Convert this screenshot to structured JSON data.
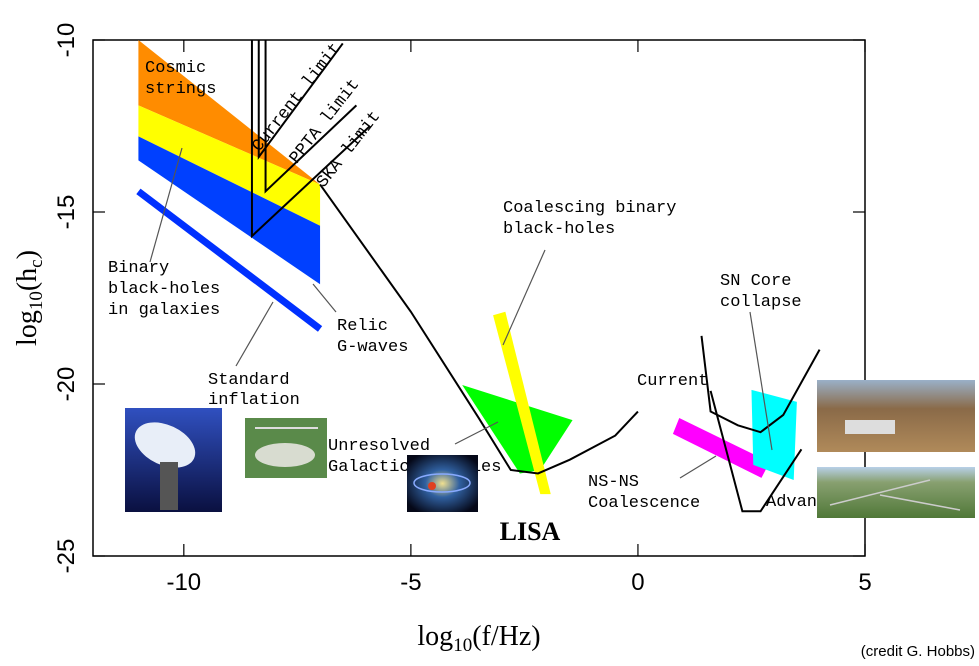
{
  "chart_data": {
    "type": "line",
    "xlabel": [
      "log",
      "10",
      "(f/Hz)"
    ],
    "ylabel": [
      "log",
      "10",
      "(h",
      "c",
      ")"
    ],
    "xlim": [
      -12,
      5
    ],
    "ylim": [
      -25,
      -10
    ],
    "xticks": [
      -10,
      -5,
      0,
      5
    ],
    "yticks": [
      -25,
      -20,
      -15,
      -10
    ],
    "regions": [
      {
        "color": "#ff8c00",
        "x": [
          -11,
          -7,
          -11
        ],
        "y": [
          -10,
          -14.2,
          -11.9
        ]
      },
      {
        "color": "#ffff00",
        "x": [
          -11,
          -7,
          -7,
          -11
        ],
        "y": [
          -11.9,
          -14.2,
          -15.4,
          -12.8
        ]
      },
      {
        "color": "#0040ff",
        "x": [
          -11,
          -7,
          -7,
          -11
        ],
        "y": [
          -12.8,
          -15.4,
          -17.1,
          -13.5
        ]
      },
      {
        "color": "#00ff00",
        "x": [
          -3.87,
          -1.44,
          -2.15,
          -2.6
        ],
        "y": [
          -20.03,
          -21.05,
          -22.5,
          -22.6
        ]
      },
      {
        "color": "#ffff00",
        "x": [
          -3.19,
          -2.92,
          -1.92,
          -2.15
        ],
        "y": [
          -18.0,
          -17.9,
          -23.2,
          -23.2
        ]
      },
      {
        "color": "#ff00ff",
        "x": [
          0.91,
          2.9,
          2.72,
          0.77
        ],
        "y": [
          -20.99,
          -22.27,
          -22.73,
          -21.45
        ]
      },
      {
        "color": "#00ffff",
        "x": [
          2.5,
          3.5,
          3.43,
          2.54
        ],
        "y": [
          -20.17,
          -20.52,
          -22.79,
          -22.35
        ]
      }
    ],
    "series": [
      {
        "name": "Current limit",
        "color": "#000000",
        "x": [
          -8.35,
          -8.35,
          -6.5
        ],
        "y": [
          -10,
          -13.4,
          -10.1
        ]
      },
      {
        "name": "PPTA limit",
        "color": "#000000",
        "x": [
          -8.2,
          -8.2,
          -6.2
        ],
        "y": [
          -10,
          -14.4,
          -11.9
        ]
      },
      {
        "name": "SKA limit",
        "color": "#000000",
        "x": [
          -8.5,
          -8.5,
          -5.9
        ],
        "y": [
          -10,
          -15.7,
          -12.5
        ]
      },
      {
        "name": "Standard inflation",
        "color": "#0030ff",
        "x": [
          -11,
          -7
        ],
        "y": [
          -14.4,
          -18.4
        ]
      },
      {
        "name": "LISA",
        "color": "#000000",
        "x": [
          -7,
          -5,
          -3.5,
          -2.8,
          -2.2,
          -1.5,
          -0.5,
          0
        ],
        "y": [
          -14.2,
          -17.9,
          -21.0,
          -22.5,
          -22.6,
          -22.2,
          -21.5,
          -20.8
        ]
      },
      {
        "name": "Current",
        "color": "#000000",
        "x": [
          1.4,
          1.6,
          2.2,
          2.7,
          3.2,
          4.0
        ],
        "y": [
          -18.6,
          -20.8,
          -21.2,
          -21.4,
          -20.9,
          -19.0
        ]
      },
      {
        "name": "Advanced",
        "color": "#000000",
        "x": [
          1.6,
          2.3,
          2.7,
          3.6
        ],
        "y": [
          -20.2,
          -23.7,
          -23.7,
          -21.9
        ]
      }
    ],
    "annotations": [
      {
        "text": [
          "Cosmic",
          "strings"
        ]
      },
      {
        "text": [
          "Binary",
          "black-holes",
          "in galaxies"
        ]
      },
      {
        "text": [
          "Relic",
          "G-waves"
        ]
      },
      {
        "text": [
          "Coalescing binary",
          "black-holes"
        ]
      },
      {
        "text": [
          "SN Core",
          "collapse"
        ]
      },
      {
        "text": [
          "Unresolved",
          "Galactic binaries"
        ]
      },
      {
        "text": [
          "NS-NS",
          "Coalescence"
        ]
      }
    ],
    "credit": "(credit G. Hobbs)"
  }
}
